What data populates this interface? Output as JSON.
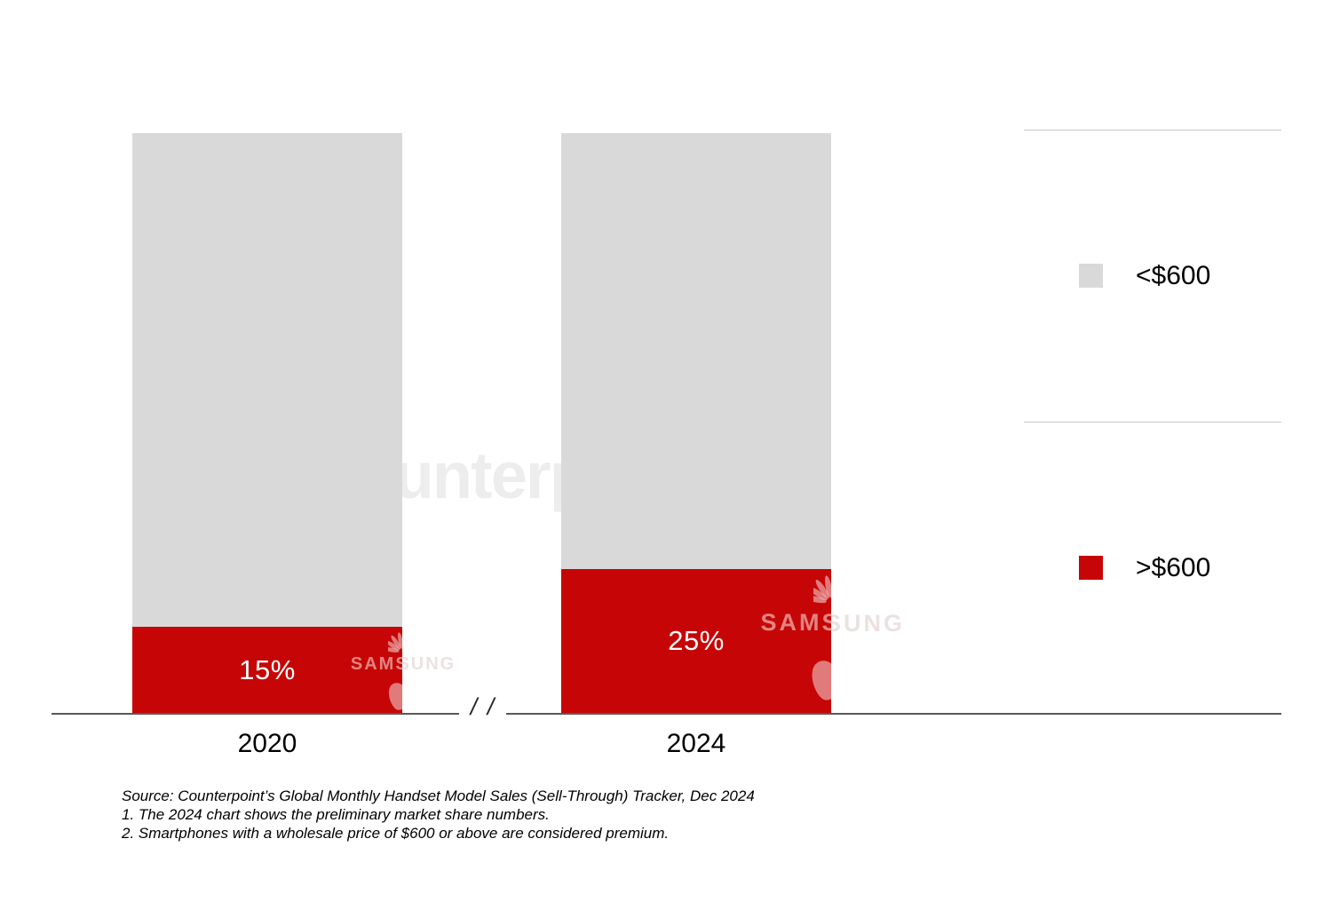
{
  "chart_data": {
    "type": "bar",
    "subtype": "stacked-100-percent",
    "categories": [
      "2020",
      "2024"
    ],
    "series": [
      {
        "name": "<$600",
        "color": "#D9D9D9",
        "values": [
          85,
          75
        ]
      },
      {
        "name": ">$600",
        "color": "#C60606",
        "values": [
          15,
          25
        ]
      }
    ],
    "data_labels": [
      "15%",
      "25%"
    ],
    "ylim": [
      0,
      100
    ],
    "grid": false,
    "legend_position": "right",
    "x_axis_break": true
  },
  "legend": {
    "items": [
      {
        "label": "<$600",
        "color": "#D9D9D9"
      },
      {
        "label": ">$600",
        "color": "#C60606"
      }
    ]
  },
  "axis": {
    "break_symbol": "/ /"
  },
  "footnotes": {
    "source": "Source: Counterpoint’s Global Monthly Handset Model Sales (Sell-Through) Tracker, Dec 2024",
    "note1": "1. The 2024 chart shows the preliminary market share numbers.",
    "note2": "2. Smartphones with a wholesale price of $600 or above are considered premium."
  },
  "watermarks": {
    "counterpoint_text": "Counterpoint",
    "samsung_text": "SAMSUNG"
  },
  "colors": {
    "bar_gray": "#D9D9D9",
    "bar_red": "#C60606",
    "axis_line": "#595959",
    "legend_divider": "#C9C9C9",
    "data_label_text": "#FFFFFF"
  }
}
